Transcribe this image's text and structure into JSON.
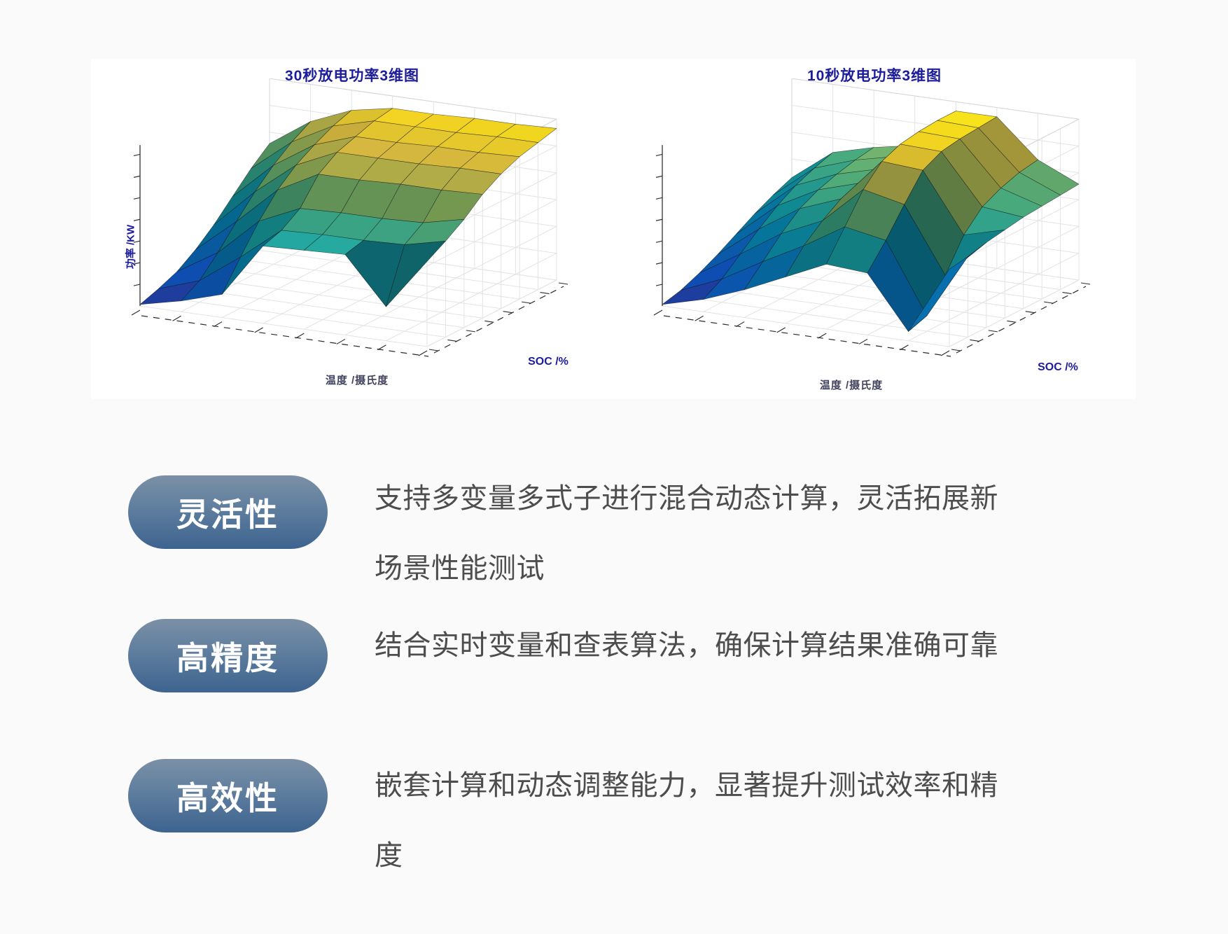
{
  "page": {
    "background": "#fafafa",
    "panel_background": "#ffffff"
  },
  "colors": {
    "chart_label": "#1c1c9c",
    "axis_sub_label": "#42425e",
    "badge_gradient_top": "#7b90a6",
    "badge_gradient_bottom": "#3d638f",
    "badge_text": "#ffffff",
    "description_text": "#4d4d4d",
    "surface_colormap": "parula"
  },
  "chart_data": [
    {
      "type": "surface",
      "title": "30秒放电功率3维图",
      "xlabel": "温度 /摄氏度",
      "ylabel": "SOC /%",
      "zlabel": "功率 /KW",
      "colormap": "parula",
      "grid": true,
      "z_normalized": [
        [
          0.01,
          0.07,
          0.15,
          0.5,
          0.51,
          0.52,
          0.22,
          0.55
        ],
        [
          0.05,
          0.14,
          0.33,
          0.54,
          0.55,
          0.55,
          0.56,
          0.62
        ],
        [
          0.1,
          0.26,
          0.5,
          0.62,
          0.63,
          0.63,
          0.64,
          0.7
        ],
        [
          0.18,
          0.4,
          0.64,
          0.78,
          0.78,
          0.79,
          0.79,
          0.8
        ],
        [
          0.28,
          0.53,
          0.74,
          0.86,
          0.86,
          0.86,
          0.87,
          0.87
        ],
        [
          0.4,
          0.64,
          0.81,
          0.9,
          0.9,
          0.91,
          0.91,
          0.92
        ],
        [
          0.52,
          0.73,
          0.87,
          0.94,
          0.94,
          0.94,
          0.95,
          0.95
        ],
        [
          0.62,
          0.8,
          0.91,
          0.96,
          0.96,
          0.97,
          0.97,
          0.98
        ]
      ]
    },
    {
      "type": "surface",
      "title": "10秒放电功率3维图",
      "xlabel": "温度 /摄氏度",
      "ylabel": "SOC /%",
      "zlabel": "",
      "colormap": "parula",
      "grid": true,
      "z_normalized": [
        [
          0.01,
          0.08,
          0.18,
          0.3,
          0.42,
          0.4,
          0.06,
          0.5
        ],
        [
          0.04,
          0.15,
          0.3,
          0.44,
          0.6,
          0.55,
          0.1,
          0.52
        ],
        [
          0.09,
          0.25,
          0.42,
          0.54,
          0.78,
          0.72,
          0.3,
          0.55
        ],
        [
          0.15,
          0.35,
          0.52,
          0.62,
          0.9,
          0.88,
          0.5,
          0.57
        ],
        [
          0.22,
          0.44,
          0.58,
          0.66,
          0.95,
          0.94,
          0.62,
          0.59
        ],
        [
          0.29,
          0.51,
          0.62,
          0.69,
          0.97,
          0.96,
          0.68,
          0.6
        ],
        [
          0.35,
          0.56,
          0.65,
          0.71,
          0.98,
          0.97,
          0.72,
          0.61
        ],
        [
          0.4,
          0.6,
          0.67,
          0.72,
          0.98,
          0.98,
          0.74,
          0.62
        ]
      ]
    }
  ],
  "features": [
    {
      "badge": "灵活性",
      "lines": [
        "支持多变量多式子进行混合动态计算，灵活拓展新",
        "场景性能测试"
      ]
    },
    {
      "badge": "高精度",
      "lines": [
        "结合实时变量和查表算法，确保计算结果准确可靠"
      ]
    },
    {
      "badge": "高效性",
      "lines": [
        "嵌套计算和动态调整能力，显著提升测试效率和精",
        "度"
      ]
    }
  ]
}
